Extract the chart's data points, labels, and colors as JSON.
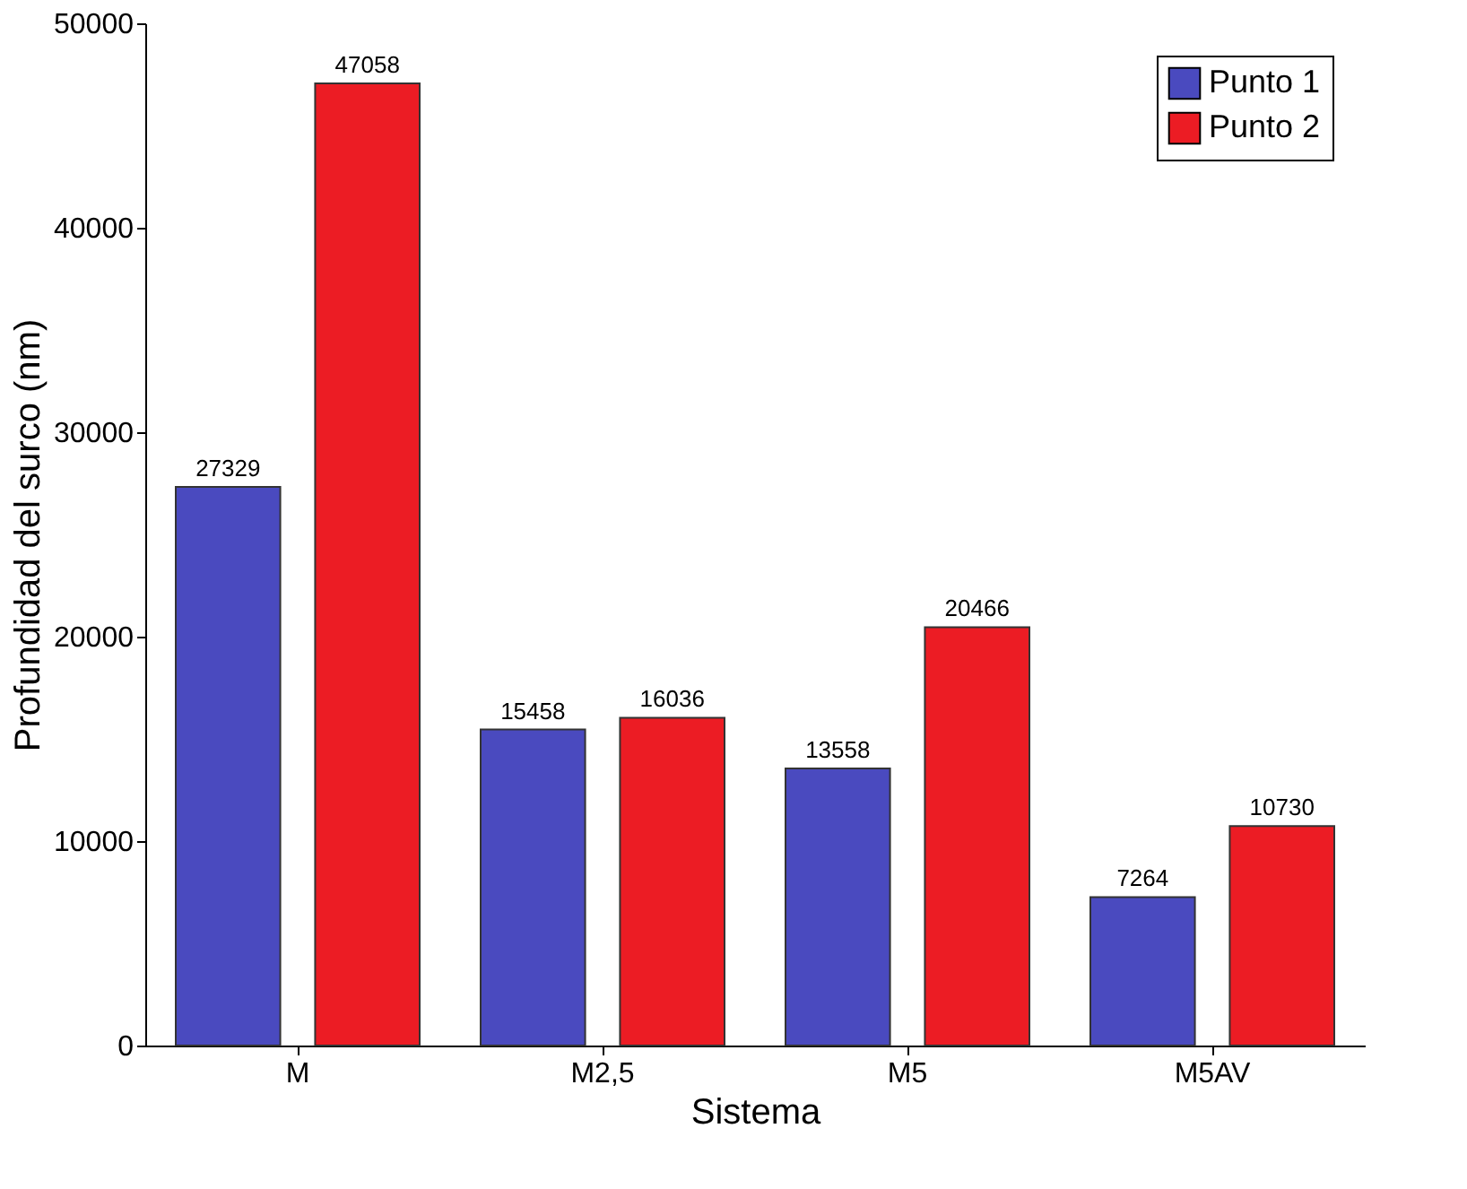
{
  "chart_data": {
    "type": "bar",
    "xlabel": "Sistema",
    "ylabel": "Profundidad del surco (nm)",
    "categories": [
      "M",
      "M2,5",
      "M5",
      "M5AV"
    ],
    "series": [
      {
        "name": "Punto 1",
        "color": "#4a4abf",
        "values": [
          27329,
          15458,
          13558,
          7264
        ]
      },
      {
        "name": "Punto 2",
        "color": "#ec1c24",
        "values": [
          47058,
          16036,
          20466,
          10730
        ]
      }
    ],
    "ylim": [
      0,
      50000
    ],
    "yticks": [
      0,
      10000,
      20000,
      30000,
      40000,
      50000
    ],
    "grid": false,
    "legend": "top right",
    "data_labels": true
  }
}
